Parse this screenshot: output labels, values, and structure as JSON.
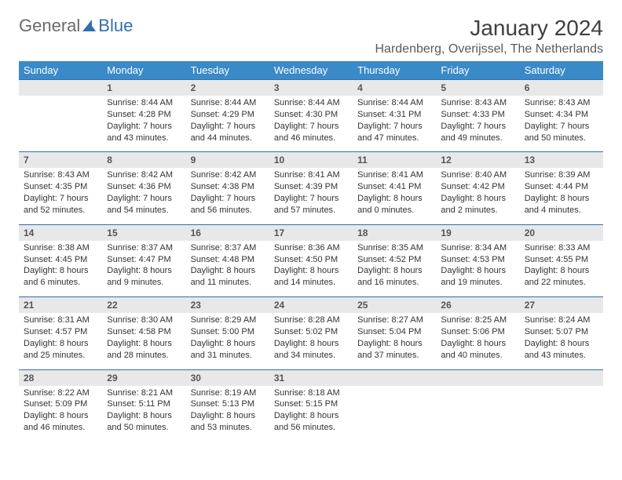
{
  "brand": {
    "part1": "General",
    "part2": "Blue"
  },
  "title": "January 2024",
  "location": "Hardenberg, Overijssel, The Netherlands",
  "header_bg": "#3a8ac8",
  "header_border": "#2f6fb0",
  "daynum_bg": "#e8e8e8",
  "days_of_week": [
    "Sunday",
    "Monday",
    "Tuesday",
    "Wednesday",
    "Thursday",
    "Friday",
    "Saturday"
  ],
  "weeks": [
    [
      null,
      {
        "n": "1",
        "sr": "8:44 AM",
        "ss": "4:28 PM",
        "dl": "7 hours and 43 minutes."
      },
      {
        "n": "2",
        "sr": "8:44 AM",
        "ss": "4:29 PM",
        "dl": "7 hours and 44 minutes."
      },
      {
        "n": "3",
        "sr": "8:44 AM",
        "ss": "4:30 PM",
        "dl": "7 hours and 46 minutes."
      },
      {
        "n": "4",
        "sr": "8:44 AM",
        "ss": "4:31 PM",
        "dl": "7 hours and 47 minutes."
      },
      {
        "n": "5",
        "sr": "8:43 AM",
        "ss": "4:33 PM",
        "dl": "7 hours and 49 minutes."
      },
      {
        "n": "6",
        "sr": "8:43 AM",
        "ss": "4:34 PM",
        "dl": "7 hours and 50 minutes."
      }
    ],
    [
      {
        "n": "7",
        "sr": "8:43 AM",
        "ss": "4:35 PM",
        "dl": "7 hours and 52 minutes."
      },
      {
        "n": "8",
        "sr": "8:42 AM",
        "ss": "4:36 PM",
        "dl": "7 hours and 54 minutes."
      },
      {
        "n": "9",
        "sr": "8:42 AM",
        "ss": "4:38 PM",
        "dl": "7 hours and 56 minutes."
      },
      {
        "n": "10",
        "sr": "8:41 AM",
        "ss": "4:39 PM",
        "dl": "7 hours and 57 minutes."
      },
      {
        "n": "11",
        "sr": "8:41 AM",
        "ss": "4:41 PM",
        "dl": "8 hours and 0 minutes."
      },
      {
        "n": "12",
        "sr": "8:40 AM",
        "ss": "4:42 PM",
        "dl": "8 hours and 2 minutes."
      },
      {
        "n": "13",
        "sr": "8:39 AM",
        "ss": "4:44 PM",
        "dl": "8 hours and 4 minutes."
      }
    ],
    [
      {
        "n": "14",
        "sr": "8:38 AM",
        "ss": "4:45 PM",
        "dl": "8 hours and 6 minutes."
      },
      {
        "n": "15",
        "sr": "8:37 AM",
        "ss": "4:47 PM",
        "dl": "8 hours and 9 minutes."
      },
      {
        "n": "16",
        "sr": "8:37 AM",
        "ss": "4:48 PM",
        "dl": "8 hours and 11 minutes."
      },
      {
        "n": "17",
        "sr": "8:36 AM",
        "ss": "4:50 PM",
        "dl": "8 hours and 14 minutes."
      },
      {
        "n": "18",
        "sr": "8:35 AM",
        "ss": "4:52 PM",
        "dl": "8 hours and 16 minutes."
      },
      {
        "n": "19",
        "sr": "8:34 AM",
        "ss": "4:53 PM",
        "dl": "8 hours and 19 minutes."
      },
      {
        "n": "20",
        "sr": "8:33 AM",
        "ss": "4:55 PM",
        "dl": "8 hours and 22 minutes."
      }
    ],
    [
      {
        "n": "21",
        "sr": "8:31 AM",
        "ss": "4:57 PM",
        "dl": "8 hours and 25 minutes."
      },
      {
        "n": "22",
        "sr": "8:30 AM",
        "ss": "4:58 PM",
        "dl": "8 hours and 28 minutes."
      },
      {
        "n": "23",
        "sr": "8:29 AM",
        "ss": "5:00 PM",
        "dl": "8 hours and 31 minutes."
      },
      {
        "n": "24",
        "sr": "8:28 AM",
        "ss": "5:02 PM",
        "dl": "8 hours and 34 minutes."
      },
      {
        "n": "25",
        "sr": "8:27 AM",
        "ss": "5:04 PM",
        "dl": "8 hours and 37 minutes."
      },
      {
        "n": "26",
        "sr": "8:25 AM",
        "ss": "5:06 PM",
        "dl": "8 hours and 40 minutes."
      },
      {
        "n": "27",
        "sr": "8:24 AM",
        "ss": "5:07 PM",
        "dl": "8 hours and 43 minutes."
      }
    ],
    [
      {
        "n": "28",
        "sr": "8:22 AM",
        "ss": "5:09 PM",
        "dl": "8 hours and 46 minutes."
      },
      {
        "n": "29",
        "sr": "8:21 AM",
        "ss": "5:11 PM",
        "dl": "8 hours and 50 minutes."
      },
      {
        "n": "30",
        "sr": "8:19 AM",
        "ss": "5:13 PM",
        "dl": "8 hours and 53 minutes."
      },
      {
        "n": "31",
        "sr": "8:18 AM",
        "ss": "5:15 PM",
        "dl": "8 hours and 56 minutes."
      },
      null,
      null,
      null
    ]
  ],
  "labels": {
    "sunrise": "Sunrise: ",
    "sunset": "Sunset: ",
    "daylight": "Daylight: "
  }
}
